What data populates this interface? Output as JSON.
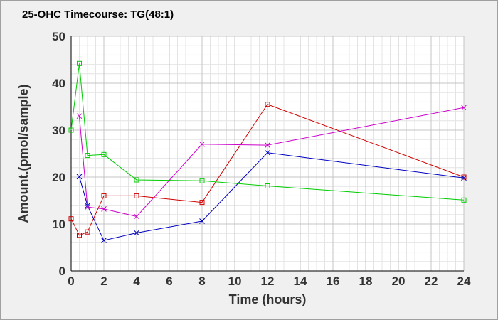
{
  "chart_data": {
    "type": "line",
    "title": "25-OHC Timecourse: TG(48:1)",
    "xlabel": "Time (hours)",
    "ylabel": "Amount.(pmol/sample)",
    "xlim": [
      0,
      24
    ],
    "ylim": [
      0,
      50
    ],
    "xticks": [
      0,
      2,
      4,
      6,
      8,
      10,
      12,
      14,
      16,
      18,
      20,
      22,
      24
    ],
    "yticks": [
      0,
      10,
      20,
      30,
      40,
      50
    ],
    "grid": true,
    "legend": "none",
    "series": [
      {
        "color": "#d00000",
        "marker": "square",
        "points": [
          [
            0,
            11.1
          ],
          [
            0.5,
            7.6
          ],
          [
            1,
            8.3
          ],
          [
            2,
            16.0
          ],
          [
            4,
            16.0
          ],
          [
            8,
            14.6
          ],
          [
            12,
            35.5
          ],
          [
            24,
            20.0
          ]
        ]
      },
      {
        "color": "#00cc00",
        "marker": "square",
        "points": [
          [
            0,
            30.0
          ],
          [
            0.5,
            44.2
          ],
          [
            1,
            24.6
          ],
          [
            2,
            24.8
          ],
          [
            4,
            19.4
          ],
          [
            8,
            19.2
          ],
          [
            12,
            18.1
          ],
          [
            24,
            15.1
          ]
        ]
      },
      {
        "color": "#0000c0",
        "marker": "x",
        "points": [
          [
            0.5,
            20.1
          ],
          [
            1,
            13.9
          ],
          [
            2,
            6.5
          ],
          [
            4,
            8.1
          ],
          [
            8,
            10.6
          ],
          [
            12,
            25.2
          ],
          [
            24,
            19.8
          ]
        ]
      },
      {
        "color": "#cc00cc",
        "marker": "x",
        "points": [
          [
            0.5,
            33.0
          ],
          [
            1,
            13.6
          ],
          [
            2,
            13.2
          ],
          [
            4,
            11.6
          ],
          [
            8,
            27.0
          ],
          [
            12,
            26.8
          ],
          [
            24,
            34.8
          ]
        ]
      }
    ]
  }
}
